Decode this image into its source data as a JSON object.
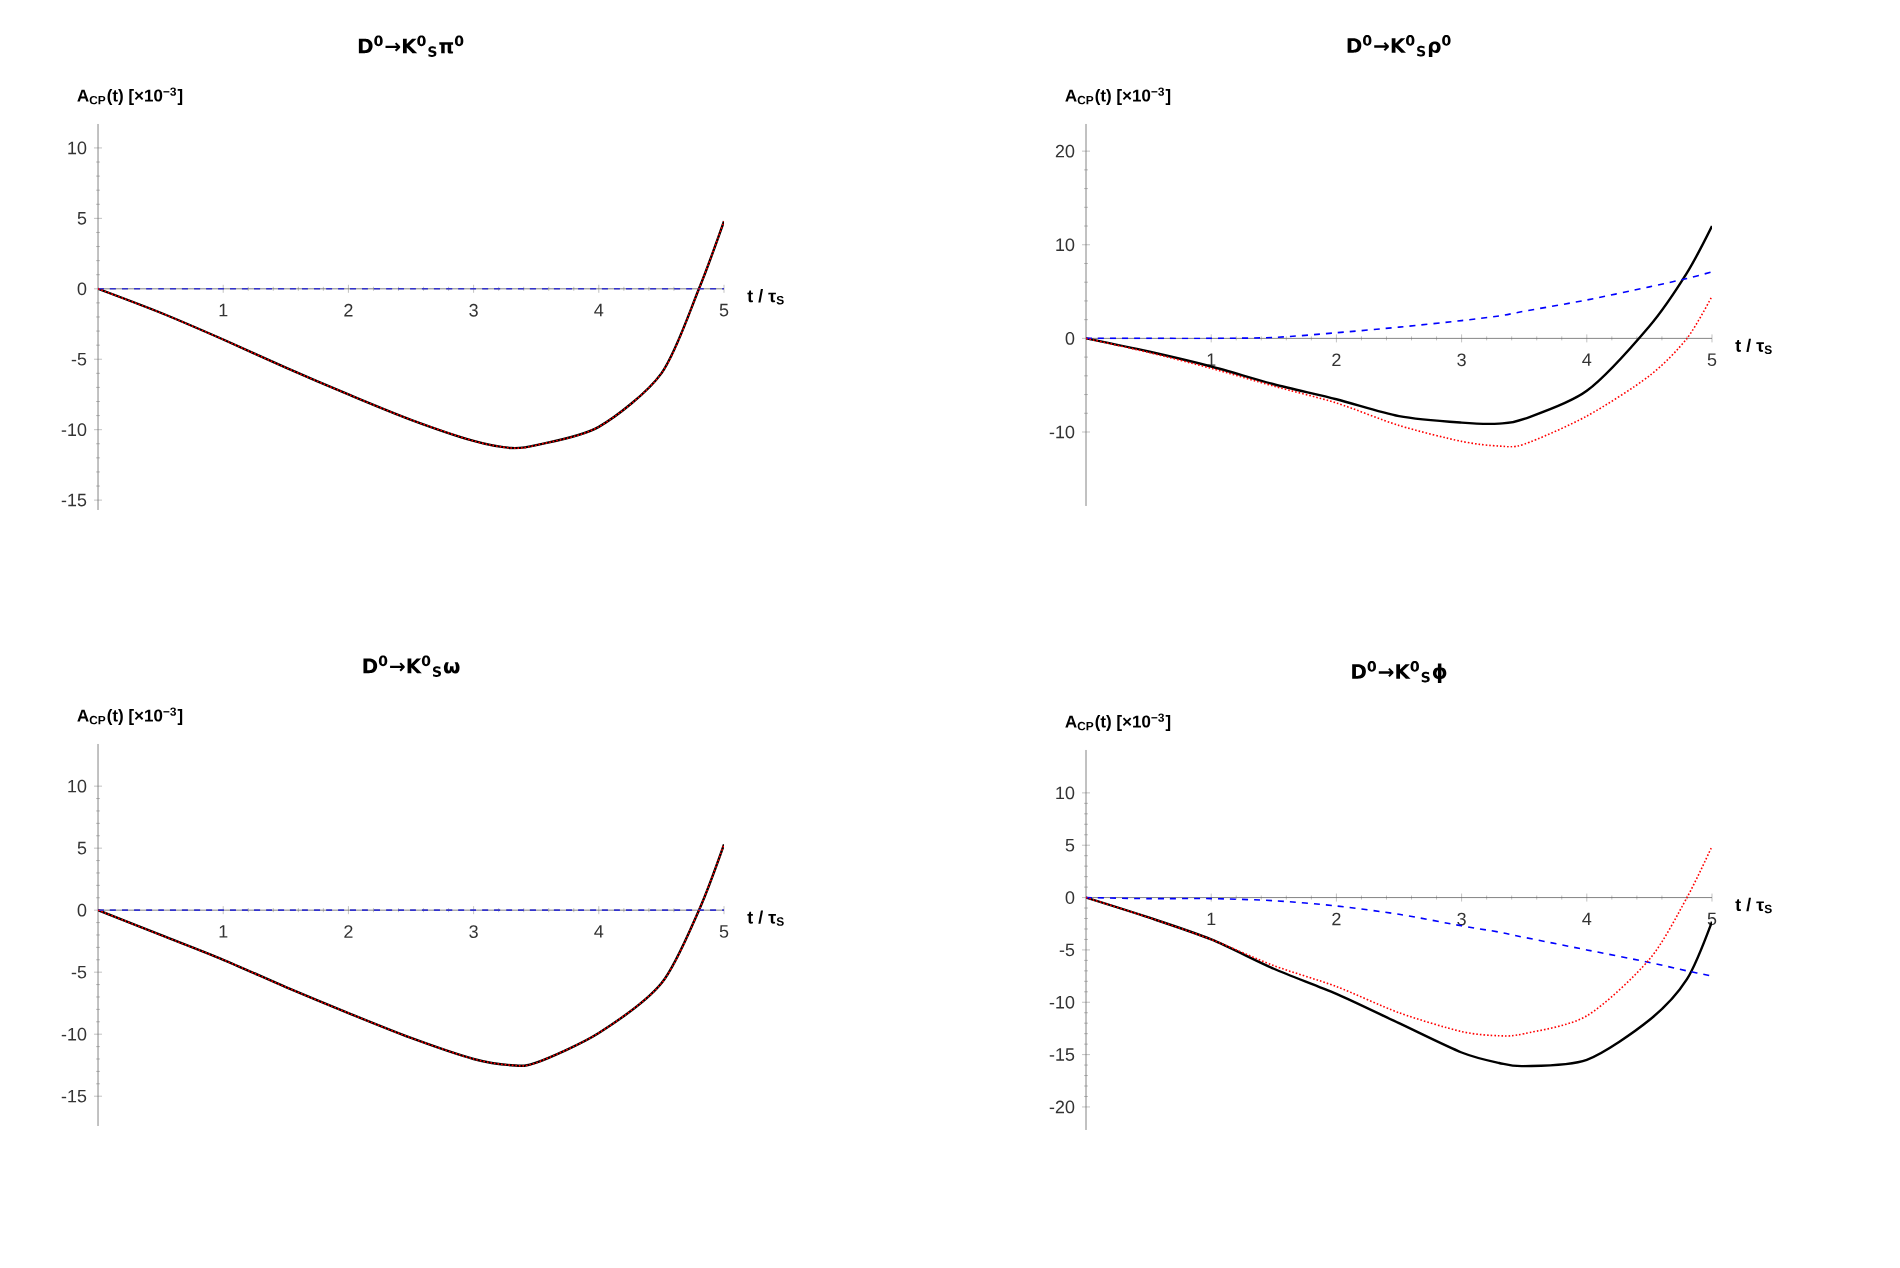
{
  "chart_data": [
    {
      "type": "line",
      "title": "D$^{0}$→K$^{0}$$_{S}$π$^{0}$",
      "xlabel": "t / τ$_{S}$",
      "ylabel": "A$_{CP}$(t) [×10$^{−3}$]",
      "xlim": [
        0,
        5
      ],
      "ylim": [
        -15.7,
        11.7
      ],
      "xticks": [
        1,
        2,
        3,
        4,
        5
      ],
      "yticks": [
        -15,
        -10,
        -5,
        0,
        5,
        10
      ],
      "x": [
        0,
        0.5,
        1,
        1.5,
        2,
        2.5,
        3,
        3.3,
        3.5,
        4,
        4.5,
        4.8,
        5
      ],
      "series": [
        {
          "color": "#000000",
          "line_style": "solid",
          "values": [
            0,
            -1.7,
            -3.6,
            -5.6,
            -7.5,
            -9.3,
            -10.8,
            -11.3,
            -11.1,
            -9.8,
            -6.0,
            0,
            4.8
          ]
        },
        {
          "color": "#3333cc",
          "line_style": "dashed",
          "values": [
            0,
            0,
            0,
            0,
            0,
            0,
            0,
            0,
            0,
            0,
            0,
            0,
            0
          ]
        },
        {
          "color": "#ff0000",
          "line_style": "dotted",
          "values": [
            0,
            -1.7,
            -3.6,
            -5.6,
            -7.5,
            -9.3,
            -10.8,
            -11.3,
            -11.1,
            -9.8,
            -6.0,
            0,
            4.8
          ]
        }
      ]
    },
    {
      "type": "line",
      "title": "D$^{0}$→K$^{0}$$_{S}$ρ$^{0}$",
      "xlabel": "t / τ$_{S}$",
      "ylabel": "A$_{CP}$(t) [×10$^{−3}$]",
      "xlim": [
        0,
        5
      ],
      "ylim": [
        -17.9,
        22.9
      ],
      "xticks": [
        1,
        2,
        3,
        4,
        5
      ],
      "yticks": [
        -10,
        0,
        10,
        20
      ],
      "x": [
        0,
        0.5,
        1,
        1.5,
        2,
        2.5,
        3,
        3.3,
        3.5,
        4,
        4.5,
        4.8,
        5
      ],
      "series": [
        {
          "color": "#000000",
          "line_style": "solid",
          "values": [
            0,
            -1.4,
            -3.0,
            -4.9,
            -6.5,
            -8.3,
            -9.0,
            -9.1,
            -8.6,
            -5.6,
            1.3,
            7.0,
            12.0
          ]
        },
        {
          "color": "#0000ff",
          "line_style": "dashed",
          "values": [
            0,
            0,
            0,
            0.1,
            0.6,
            1.2,
            1.9,
            2.4,
            2.9,
            4.1,
            5.5,
            6.4,
            7.1
          ]
        },
        {
          "color": "#ff0000",
          "line_style": "dotted",
          "values": [
            0,
            -1.5,
            -3.2,
            -5.1,
            -6.9,
            -9.3,
            -11.0,
            -11.5,
            -11.3,
            -8.3,
            -4.0,
            0,
            4.5
          ]
        }
      ]
    },
    {
      "type": "line",
      "title": "D$^{0}$→K$^{0}$$_{S}$ω",
      "xlabel": "t / τ$_{S}$",
      "ylabel": "A$_{CP}$(t) [×10$^{−3}$]",
      "xlim": [
        0,
        5
      ],
      "ylim": [
        -17.4,
        13.4
      ],
      "xticks": [
        1,
        2,
        3,
        4,
        5
      ],
      "yticks": [
        -15,
        -10,
        -5,
        0,
        5,
        10
      ],
      "x": [
        0,
        0.5,
        1,
        1.5,
        2,
        2.5,
        3,
        3.3,
        3.5,
        4,
        4.5,
        4.8,
        5
      ],
      "series": [
        {
          "color": "#000000",
          "line_style": "solid",
          "values": [
            0,
            -2.0,
            -4.0,
            -6.2,
            -8.3,
            -10.3,
            -12.0,
            -12.5,
            -12.3,
            -9.9,
            -5.9,
            0,
            5.3
          ]
        },
        {
          "color": "#3333cc",
          "line_style": "dashed",
          "values": [
            0,
            0,
            0,
            0,
            0,
            0,
            0,
            0,
            0,
            0,
            0,
            0,
            0
          ]
        },
        {
          "color": "#ff0000",
          "line_style": "dotted",
          "values": [
            0,
            -2.0,
            -4.0,
            -6.2,
            -8.3,
            -10.3,
            -12.0,
            -12.5,
            -12.3,
            -9.9,
            -5.9,
            0,
            5.3
          ]
        }
      ]
    },
    {
      "type": "line",
      "title": "D$^{0}$→K$^{0}$$_{S}$ϕ",
      "xlabel": "t / τ$_{S}$",
      "ylabel": "A$_{CP}$(t) [×10$^{−3}$]",
      "xlim": [
        0,
        5
      ],
      "ylim": [
        -22.2,
        14.1
      ],
      "xticks": [
        1,
        2,
        3,
        4,
        5
      ],
      "yticks": [
        -20,
        -15,
        -10,
        -5,
        0,
        5,
        10
      ],
      "x": [
        0,
        0.5,
        1,
        1.5,
        2,
        2.5,
        3,
        3.3,
        3.5,
        4,
        4.5,
        4.8,
        5
      ],
      "series": [
        {
          "color": "#000000",
          "line_style": "solid",
          "values": [
            0,
            -1.9,
            -4.0,
            -6.8,
            -9.2,
            -12.0,
            -14.8,
            -15.8,
            -16.1,
            -15.5,
            -11.7,
            -7.8,
            -2.3
          ]
        },
        {
          "color": "#0000ff",
          "line_style": "dashed",
          "values": [
            0,
            -0.1,
            -0.1,
            -0.3,
            -0.8,
            -1.6,
            -2.7,
            -3.3,
            -3.8,
            -5.0,
            -6.2,
            -7.0,
            -7.5
          ]
        },
        {
          "color": "#ff0000",
          "line_style": "dotted",
          "values": [
            0,
            -1.9,
            -4.0,
            -6.5,
            -8.5,
            -11.0,
            -12.8,
            -13.2,
            -13.0,
            -11.3,
            -5.9,
            0,
            4.9
          ]
        }
      ]
    }
  ]
}
